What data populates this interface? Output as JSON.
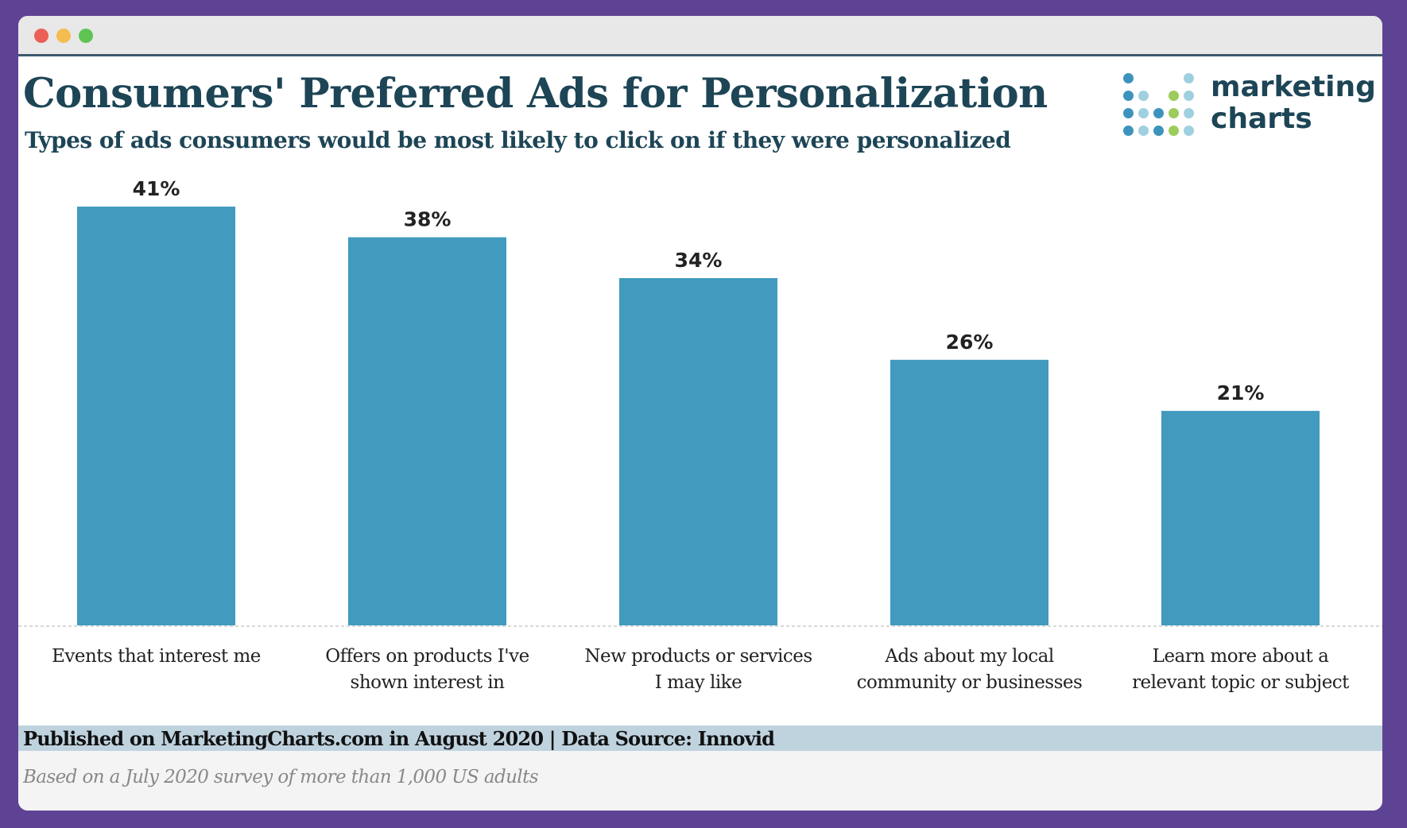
{
  "window": {
    "controls": [
      "close",
      "minimize",
      "maximize"
    ],
    "control_colors": [
      "#ec5f57",
      "#f4bd4f",
      "#5fc454"
    ]
  },
  "header": {
    "title": "Consumers' Preferred Ads for Personalization",
    "subtitle": "Types of ads consumers would be most likely to click on if they were personalized"
  },
  "logo": {
    "line1": "marketing",
    "line2": "charts"
  },
  "chart_data": {
    "type": "bar",
    "title": "Consumers' Preferred Ads for Personalization",
    "subtitle": "Types of ads consumers would be most likely to click on if they were personalized",
    "categories": [
      [
        "Events that interest me"
      ],
      [
        "Offers on products I've",
        "shown interest in"
      ],
      [
        "New products or services",
        "I may like"
      ],
      [
        "Ads about my local",
        "community or businesses"
      ],
      [
        "Learn more about a",
        "relevant topic or subject"
      ]
    ],
    "values": [
      41,
      38,
      34,
      26,
      21
    ],
    "data_labels": [
      "41%",
      "38%",
      "34%",
      "26%",
      "21%"
    ],
    "unit": "%",
    "ylim": [
      0,
      41
    ],
    "grid": false,
    "bar_color": "#429abf"
  },
  "footer": {
    "published": "Published on MarketingCharts.com in August 2020 | Data Source: Innovid",
    "note": "Based on a July 2020 survey of more than 1,000 US adults"
  }
}
